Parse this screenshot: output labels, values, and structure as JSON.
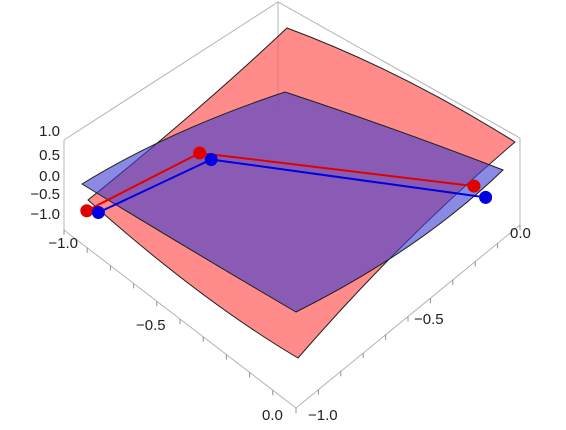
{
  "chart_data": {
    "type": "surface3d",
    "title": "",
    "z_ticks": [
      "1.0",
      "0.5",
      "0.0",
      "−0.5",
      "−1.0",
      "−1.0"
    ],
    "x_ticks": [
      "0.0",
      "−0.5",
      "−1.0"
    ],
    "y_ticks": [
      "0.0",
      "−0.5"
    ],
    "x_range": [
      -1.0,
      0.0
    ],
    "y_range": [
      -1.0,
      0.0
    ],
    "z_range": [
      -1.0,
      1.0
    ],
    "surfaces": [
      {
        "color": "#ff5a5a",
        "opacity": 0.7
      },
      {
        "color": "#3c3cd2",
        "opacity": 0.6
      }
    ],
    "series": [
      {
        "color": "#e00000",
        "points": [
          [
            -0.95,
            -0.05,
            -0.6
          ],
          [
            -0.55,
            -0.15,
            -0.55
          ],
          [
            -0.05,
            -0.85,
            -0.55
          ]
        ]
      },
      {
        "color": "#0000e0",
        "points": [
          [
            -0.95,
            -0.1,
            -0.45
          ],
          [
            -0.55,
            -0.2,
            -0.5
          ],
          [
            -0.05,
            -0.9,
            -0.6
          ]
        ]
      }
    ],
    "box": true
  }
}
